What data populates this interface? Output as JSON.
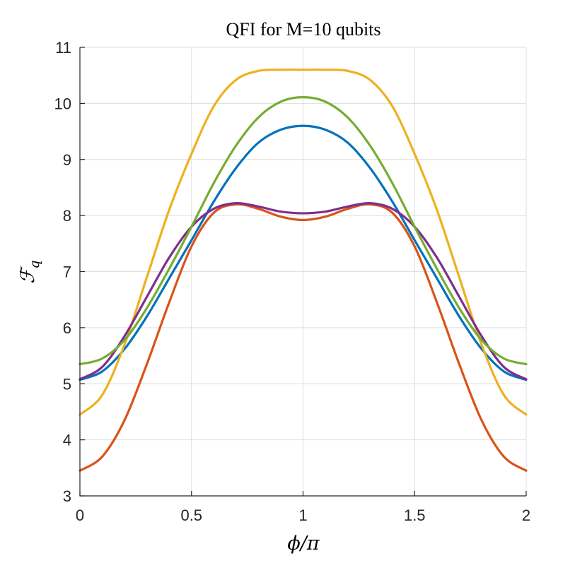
{
  "chart_data": {
    "type": "line",
    "title": "QFI for M=10 qubits",
    "xlabel": "ϕ/π",
    "ylabel": {
      "main": "ℱ",
      "sub": "q"
    },
    "xlim": [
      0,
      2
    ],
    "ylim": [
      3,
      11
    ],
    "xticks": [
      0,
      0.5,
      1,
      1.5,
      2
    ],
    "xtick_labels": [
      "0",
      "0.5",
      "1",
      "1.5",
      "2"
    ],
    "yticks": [
      3,
      4,
      5,
      6,
      7,
      8,
      9,
      10,
      11
    ],
    "ytick_labels": [
      "3",
      "4",
      "5",
      "6",
      "7",
      "8",
      "9",
      "10",
      "11"
    ],
    "grid": true,
    "legend": "none",
    "x": [
      0,
      0.1,
      0.2,
      0.3,
      0.4,
      0.5,
      0.6,
      0.7,
      0.8,
      0.9,
      1.0,
      1.1,
      1.2,
      1.3,
      1.4,
      1.5,
      1.6,
      1.7,
      1.8,
      1.9,
      2.0
    ],
    "series": [
      {
        "name": "blue",
        "color": "#0072BD",
        "values": [
          5.07,
          5.22,
          5.62,
          6.2,
          6.88,
          7.56,
          8.25,
          8.85,
          9.3,
          9.53,
          9.6,
          9.53,
          9.3,
          8.85,
          8.25,
          7.56,
          6.88,
          6.2,
          5.62,
          5.22,
          5.07
        ]
      },
      {
        "name": "red",
        "color": "#D95319",
        "values": [
          3.45,
          3.7,
          4.35,
          5.35,
          6.45,
          7.45,
          8.05,
          8.2,
          8.12,
          7.98,
          7.92,
          7.98,
          8.12,
          8.2,
          8.05,
          7.45,
          6.45,
          5.35,
          4.35,
          3.7,
          3.45
        ]
      },
      {
        "name": "yellow",
        "color": "#EDB120",
        "values": [
          4.45,
          4.8,
          5.7,
          6.9,
          8.1,
          9.1,
          9.95,
          10.42,
          10.58,
          10.6,
          10.6,
          10.6,
          10.58,
          10.42,
          9.95,
          9.1,
          8.1,
          6.9,
          5.7,
          4.8,
          4.45
        ]
      },
      {
        "name": "purple",
        "color": "#7E2F8E",
        "values": [
          5.08,
          5.3,
          5.85,
          6.55,
          7.25,
          7.8,
          8.12,
          8.22,
          8.16,
          8.07,
          8.04,
          8.07,
          8.16,
          8.22,
          8.12,
          7.8,
          7.25,
          6.55,
          5.85,
          5.3,
          5.08
        ]
      },
      {
        "name": "green",
        "color": "#77AC30",
        "values": [
          5.35,
          5.45,
          5.78,
          6.35,
          7.05,
          7.8,
          8.58,
          9.25,
          9.75,
          10.03,
          10.11,
          10.03,
          9.75,
          9.25,
          8.58,
          7.8,
          7.05,
          6.35,
          5.78,
          5.45,
          5.35
        ]
      }
    ]
  }
}
